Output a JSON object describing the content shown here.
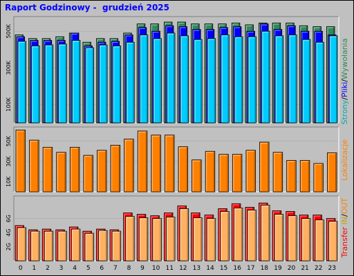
{
  "title": "Raport Godzinowy -  grudzień 2025",
  "colors": {
    "background": "#c0c0c0",
    "plot": "#c0c0c0",
    "hits": "#2e8b57",
    "files": "#0000ff",
    "pages": "#00ccff",
    "visits": "#ff8000",
    "kbytes": "#ff0000",
    "kbytes_in": "#ffb060",
    "title": "#0000ff"
  },
  "side_labels": {
    "top": [
      {
        "text": "Strony",
        "color": "#00aaaa"
      },
      {
        "text": "/",
        "color": "#000000"
      },
      {
        "text": "Pliki",
        "color": "#0000ff"
      },
      {
        "text": "/",
        "color": "#000000"
      },
      {
        "text": "Wywołania",
        "color": "#2e8b57"
      }
    ],
    "middle": [
      {
        "text": "Lokalizacje",
        "color": "#ff8000"
      }
    ],
    "bottom": [
      {
        "text": "Transfer",
        "color": "#ff0000"
      },
      {
        "text": " IN",
        "color": "#c8a000"
      },
      {
        "text": "/",
        "color": "#000000"
      },
      {
        "text": "OUT",
        "color": "#ff8000"
      }
    ]
  },
  "chart_data": [
    {
      "type": "bar",
      "panel": "top",
      "x": [
        "0",
        "1",
        "2",
        "3",
        "4",
        "5",
        "6",
        "7",
        "8",
        "9",
        "10",
        "11",
        "12",
        "13",
        "14",
        "15",
        "16",
        "17",
        "18",
        "19",
        "20",
        "21",
        "22",
        "23"
      ],
      "ylim": [
        0,
        580000
      ],
      "yticks": [
        {
          "v": 100000,
          "label": "100K"
        },
        {
          "v": 300000,
          "label": "300K"
        },
        {
          "v": 500000,
          "label": "500K"
        }
      ],
      "series": [
        {
          "key": "hits",
          "values": [
            480000,
            460000,
            460000,
            470000,
            490000,
            440000,
            460000,
            460000,
            490000,
            540000,
            540000,
            550000,
            550000,
            540000,
            540000,
            540000,
            545000,
            535000,
            545000,
            545000,
            545000,
            530000,
            525000,
            525000
          ]
        },
        {
          "key": "files",
          "values": [
            470000,
            450000,
            450000,
            450000,
            490000,
            420000,
            440000,
            445000,
            480000,
            520000,
            500000,
            530000,
            525000,
            510000,
            510000,
            520000,
            525000,
            500000,
            540000,
            510000,
            530000,
            500000,
            500000,
            480000
          ]
        },
        {
          "key": "pages",
          "values": [
            445000,
            420000,
            425000,
            430000,
            450000,
            410000,
            425000,
            420000,
            440000,
            480000,
            460000,
            490000,
            475000,
            455000,
            460000,
            480000,
            470000,
            470000,
            500000,
            475000,
            480000,
            455000,
            440000,
            475000
          ]
        }
      ]
    },
    {
      "type": "bar",
      "panel": "middle",
      "x": [
        "0",
        "1",
        "2",
        "3",
        "4",
        "5",
        "6",
        "7",
        "8",
        "9",
        "10",
        "11",
        "12",
        "13",
        "14",
        "15",
        "16",
        "17",
        "18",
        "19",
        "20",
        "21",
        "22",
        "23"
      ],
      "ylim": [
        0,
        64000
      ],
      "yticks": [
        {
          "v": 10000,
          "label": "10K"
        },
        {
          "v": 30000,
          "label": "30K"
        },
        {
          "v": 50000,
          "label": "50K"
        }
      ],
      "series": [
        {
          "key": "visits",
          "values": [
            61000,
            51000,
            44000,
            39000,
            44000,
            36000,
            41000,
            46000,
            52000,
            60000,
            56000,
            56000,
            44500,
            31500,
            40000,
            37000,
            37000,
            41000,
            49000,
            39000,
            31000,
            31000,
            28000,
            38500
          ]
        }
      ]
    },
    {
      "type": "bar",
      "panel": "bottom",
      "x": [
        "0",
        "1",
        "2",
        "3",
        "4",
        "5",
        "6",
        "7",
        "8",
        "9",
        "10",
        "11",
        "12",
        "13",
        "14",
        "15",
        "16",
        "17",
        "18",
        "19",
        "20",
        "21",
        "22",
        "23"
      ],
      "ylim": [
        0,
        9.2
      ],
      "yticks": [
        {
          "v": 2,
          "label": "2G"
        },
        {
          "v": 4,
          "label": "4G"
        },
        {
          "v": 6,
          "label": "6G"
        }
      ],
      "series": [
        {
          "key": "kbytes",
          "values": [
            5.0,
            4.4,
            4.5,
            4.4,
            4.8,
            4.2,
            4.5,
            4.4,
            6.8,
            6.6,
            6.4,
            6.8,
            7.8,
            6.8,
            6.5,
            7.4,
            8.1,
            7.6,
            8.2,
            7.1,
            7.0,
            6.5,
            6.5,
            6.0
          ]
        },
        {
          "key": "kbytes_in",
          "values": [
            4.7,
            4.2,
            4.2,
            4.2,
            4.5,
            3.9,
            4.3,
            4.2,
            6.3,
            6.1,
            6.0,
            6.2,
            7.4,
            6.1,
            6.0,
            7.0,
            7.5,
            7.2,
            7.9,
            6.6,
            6.4,
            6.0,
            5.8,
            5.6
          ]
        }
      ]
    }
  ]
}
